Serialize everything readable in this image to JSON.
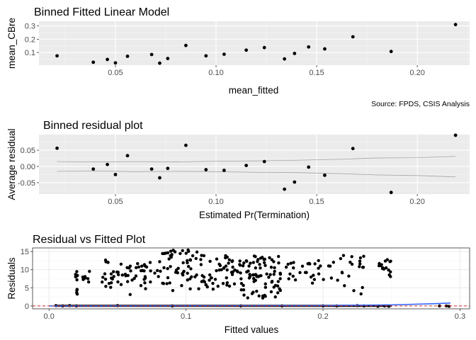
{
  "chart_data": [
    {
      "type": "scatter",
      "title": "Binned Fitted Linear Model",
      "xlabel": "mean_fitted",
      "ylabel": "mean_CBre",
      "caption": "Source: FPDS, CSIS Analysis",
      "xlim": [
        0.012,
        0.226
      ],
      "ylim": [
        0.005,
        0.335
      ],
      "xticks": [
        0.05,
        0.1,
        0.15,
        0.2
      ],
      "xtick_labels": [
        "0.05",
        "0.10",
        "0.15",
        "0.20"
      ],
      "yticks": [
        0.1,
        0.2,
        0.3
      ],
      "ytick_labels": [
        "0.1",
        "0.2",
        "0.3"
      ],
      "grid": true,
      "theme": "ggplot-gray",
      "x": [
        0.021,
        0.039,
        0.046,
        0.05,
        0.056,
        0.068,
        0.072,
        0.076,
        0.085,
        0.095,
        0.104,
        0.115,
        0.124,
        0.134,
        0.139,
        0.146,
        0.154,
        0.168,
        0.187,
        0.219
      ],
      "y": [
        0.075,
        0.027,
        0.048,
        0.022,
        0.072,
        0.085,
        0.02,
        0.055,
        0.153,
        0.075,
        0.087,
        0.118,
        0.137,
        0.052,
        0.093,
        0.142,
        0.127,
        0.218,
        0.108,
        0.31
      ]
    },
    {
      "type": "scatter",
      "title": "Binned residual plot",
      "xlabel": "Estimated Pr(Termination)",
      "ylabel": "Average residual",
      "xlim": [
        0.012,
        0.226
      ],
      "ylim": [
        -0.085,
        0.098
      ],
      "xticks": [
        0.05,
        0.1,
        0.15,
        0.2
      ],
      "xtick_labels": [
        "0.05",
        "0.10",
        "0.15",
        "0.20"
      ],
      "yticks": [
        -0.05,
        0.0,
        0.05
      ],
      "ytick_labels": [
        "-0.05",
        "0.00",
        "0.05"
      ],
      "grid": true,
      "theme": "ggplot-gray",
      "x": [
        0.021,
        0.039,
        0.046,
        0.05,
        0.056,
        0.068,
        0.072,
        0.076,
        0.085,
        0.095,
        0.104,
        0.115,
        0.124,
        0.134,
        0.139,
        0.146,
        0.154,
        0.168,
        0.187,
        0.219
      ],
      "y": [
        0.056,
        -0.008,
        0.006,
        -0.025,
        0.033,
        -0.008,
        -0.035,
        -0.006,
        0.065,
        -0.01,
        -0.012,
        0.003,
        0.015,
        -0.07,
        -0.048,
        -0.002,
        -0.027,
        0.055,
        -0.08,
        0.096
      ],
      "bounds": {
        "x": [
          0.021,
          0.04,
          0.06,
          0.08,
          0.1,
          0.12,
          0.14,
          0.16,
          0.18,
          0.2,
          0.219
        ],
        "upper": [
          0.015,
          0.014,
          0.015,
          0.014,
          0.016,
          0.017,
          0.019,
          0.022,
          0.026,
          0.027,
          0.031
        ],
        "lower": [
          -0.015,
          -0.014,
          -0.016,
          -0.015,
          -0.016,
          -0.018,
          -0.019,
          -0.022,
          -0.026,
          -0.028,
          -0.032
        ]
      }
    },
    {
      "type": "scatter",
      "title": "Residual vs Fitted Plot",
      "xlabel": "Fitted values",
      "ylabel": "Residuals",
      "xlim": [
        -0.012,
        0.307
      ],
      "ylim": [
        -0.8,
        16.0
      ],
      "xticks": [
        0.0,
        0.1,
        0.2,
        0.3
      ],
      "xtick_labels": [
        "0.0",
        "0.1",
        "0.2",
        "0.3"
      ],
      "yticks": [
        0,
        5,
        10,
        15
      ],
      "ytick_labels": [
        "0",
        "5",
        "10",
        "15"
      ],
      "grid": true,
      "theme": "bw",
      "reference_line": {
        "y": 0,
        "style": "dashed",
        "color": "#d73027"
      },
      "smooth": {
        "color": "#3366ff",
        "x": [
          0.0,
          0.1,
          0.2,
          0.25,
          0.28,
          0.293
        ],
        "y": [
          0.0,
          0.05,
          0.1,
          0.3,
          0.6,
          0.8
        ]
      },
      "points_near_zero": {
        "x": [
          0.005,
          0.01,
          0.015,
          0.02,
          0.05,
          0.09,
          0.14,
          0.17,
          0.2,
          0.21,
          0.225,
          0.23,
          0.24,
          0.245,
          0.248,
          0.285,
          0.29,
          0.292
        ],
        "y": [
          0.1,
          0.0,
          0.1,
          0.0,
          0.1,
          0.0,
          0.0,
          0.0,
          0.0,
          0.0,
          0.1,
          0.0,
          -0.1,
          0.0,
          -0.1,
          0.0,
          0.0,
          -0.1
        ]
      },
      "clusters": [
        {
          "x0": 0.019,
          "x1": 0.021,
          "n": 10,
          "ymin": 1.0,
          "ymax": 9.5
        },
        {
          "x0": 0.024,
          "x1": 0.03,
          "n": 8,
          "ymin": 5.5,
          "ymax": 10.0
        },
        {
          "x0": 0.035,
          "x1": 0.05,
          "n": 18,
          "ymin": 5.0,
          "ymax": 13.0
        },
        {
          "x0": 0.05,
          "x1": 0.08,
          "n": 40,
          "ymin": 3.0,
          "ymax": 12.0
        },
        {
          "x0": 0.08,
          "x1": 0.11,
          "n": 55,
          "ymin": 4.0,
          "ymax": 15.5
        },
        {
          "x0": 0.11,
          "x1": 0.14,
          "n": 55,
          "ymin": 4.5,
          "ymax": 14.0
        },
        {
          "x0": 0.14,
          "x1": 0.17,
          "n": 80,
          "ymin": 2.0,
          "ymax": 14.0
        },
        {
          "x0": 0.17,
          "x1": 0.2,
          "n": 25,
          "ymin": 6.0,
          "ymax": 12.5
        },
        {
          "x0": 0.2,
          "x1": 0.23,
          "n": 25,
          "ymin": 3.0,
          "ymax": 14.0
        },
        {
          "x0": 0.24,
          "x1": 0.25,
          "n": 16,
          "ymin": 7.5,
          "ymax": 13.5
        }
      ]
    }
  ]
}
